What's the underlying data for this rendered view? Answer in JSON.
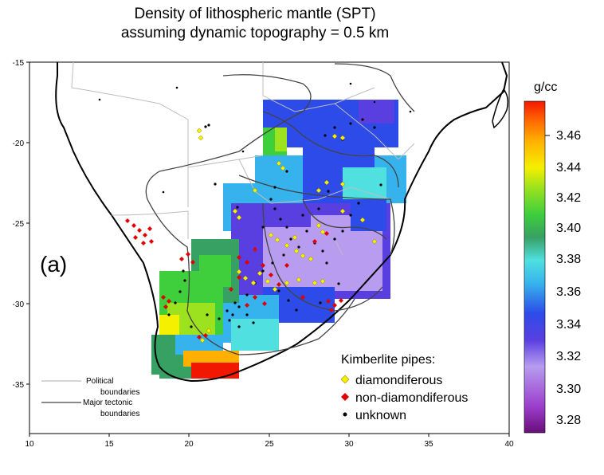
{
  "title_line1": "Density of lithospheric mantle (SPT)",
  "title_line2": "assuming dynamic topography = 0.5 km",
  "panel_label": "(a)",
  "colorbar": {
    "unit": "g/cc",
    "ticks": [
      "3.46",
      "3.44",
      "3.42",
      "3.40",
      "3.38",
      "3.36",
      "3.34",
      "3.32",
      "3.30",
      "3.28"
    ],
    "colors": [
      "#6a0d7a",
      "#9b3fcc",
      "#b79cf0",
      "#5a3fe0",
      "#2d4be8",
      "#36b3ec",
      "#50e0e0",
      "#37a063",
      "#3fcf3c",
      "#9de21e",
      "#f5ef00",
      "#ffb000",
      "#ff6a00",
      "#f21800"
    ]
  },
  "axes": {
    "x_ticks": [
      "10",
      "15",
      "20",
      "25",
      "30",
      "35",
      "40"
    ],
    "y_ticks": [
      "-15",
      "-20",
      "-25",
      "-30",
      "-35"
    ]
  },
  "legend_lines": {
    "political_line1": "Political",
    "political_line2": "boundaries",
    "tectonic_line1": "Major tectonic",
    "tectonic_line2": "boundaries"
  },
  "legend_pipes": {
    "title": "Kimberlite pipes:",
    "diamondiferous": "diamondiferous",
    "non_diamondiferous": "non-diamondiferous",
    "unknown": "unknown",
    "diamond_color": "#f5ef00",
    "non_diamond_color": "#e00000",
    "unknown_color": "#000000"
  }
}
